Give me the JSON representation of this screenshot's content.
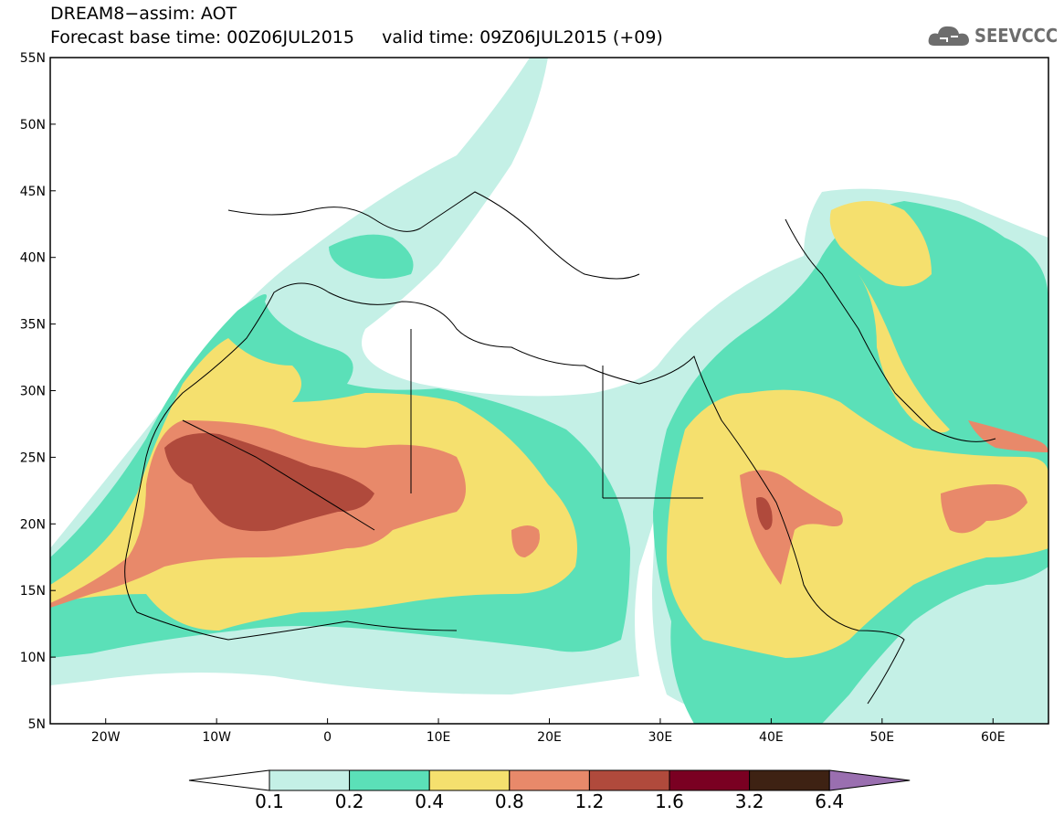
{
  "header": {
    "line1": "DREAM8−assim: AOT",
    "line2": "Forecast base time: 00Z06JUL2015     valid time: 09Z06JUL2015 (+09)"
  },
  "logo": {
    "text": "SEEVCCC",
    "icon": "cloud-logo-icon"
  },
  "map": {
    "lon_range": [
      -25,
      65
    ],
    "lat_range": [
      5,
      55
    ],
    "lat_ticks": [
      "55N",
      "50N",
      "45N",
      "40N",
      "35N",
      "30N",
      "25N",
      "20N",
      "15N",
      "10N",
      "5N"
    ],
    "lon_ticks": [
      "20W",
      "10W",
      "0",
      "10E",
      "20E",
      "30E",
      "40E",
      "50E",
      "60E"
    ]
  },
  "colorbar": {
    "labels": [
      "0.1",
      "0.2",
      "0.4",
      "0.8",
      "1.2",
      "1.6",
      "3.2",
      "6.4"
    ],
    "colors": [
      "#c4f0e6",
      "#5be0b8",
      "#f5e06e",
      "#e8896a",
      "#b04a3c",
      "#7a0022",
      "#3e2213"
    ],
    "under_color": "#ffffff",
    "over_color": "#9a6fb0"
  }
}
